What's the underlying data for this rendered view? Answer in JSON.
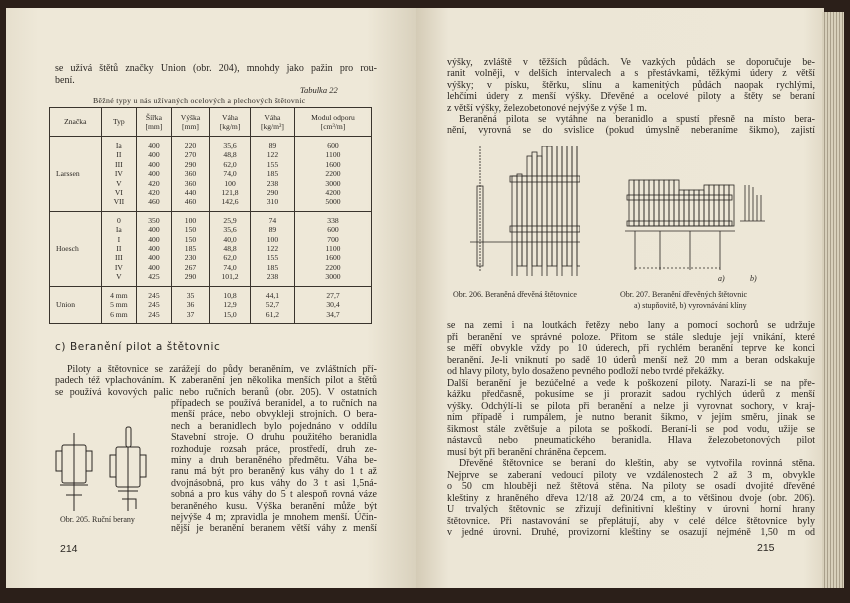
{
  "left_page": {
    "intro_lines": [
      "se užívá štětů značky Union (obr. 204), mnohdy jako pažin pro rou-",
      "bení."
    ],
    "table_label": "Tabulka 22",
    "table_caption": "Běžné typy u nás užívaných ocelových a plechových štětovnic",
    "table": {
      "headers": [
        "Značka",
        "Typ",
        "Šířka\n[mm]",
        "Výška\n[mm]",
        "Váha\n[kg/m]",
        "Váha\n[kg/m²]",
        "Modul odporu\n[cm³/m]"
      ],
      "groups": [
        {
          "brand": "Larssen",
          "rows": [
            [
              "Ia",
              "400",
              "220",
              "35,6",
              "89",
              "600"
            ],
            [
              "II",
              "400",
              "270",
              "48,8",
              "122",
              "1100"
            ],
            [
              "III",
              "400",
              "290",
              "62,0",
              "155",
              "1600"
            ],
            [
              "IV",
              "400",
              "360",
              "74,0",
              "185",
              "2200"
            ],
            [
              "V",
              "420",
              "360",
              "100",
              "238",
              "3000"
            ],
            [
              "VI",
              "420",
              "440",
              "121,8",
              "290",
              "4200"
            ],
            [
              "VII",
              "460",
              "460",
              "142,6",
              "310",
              "5000"
            ]
          ]
        },
        {
          "brand": "Hoesch",
          "rows": [
            [
              "0",
              "350",
              "100",
              "25,9",
              "74",
              "338"
            ],
            [
              "Ia",
              "400",
              "150",
              "35,6",
              "89",
              "600"
            ],
            [
              "I",
              "400",
              "150",
              "40,0",
              "100",
              "700"
            ],
            [
              "II",
              "400",
              "185",
              "48,8",
              "122",
              "1100"
            ],
            [
              "III",
              "400",
              "230",
              "62,0",
              "155",
              "1600"
            ],
            [
              "IV",
              "400",
              "267",
              "74,0",
              "185",
              "2200"
            ],
            [
              "V",
              "425",
              "290",
              "101,2",
              "238",
              "3000"
            ]
          ]
        },
        {
          "brand": "Union",
          "rows": [
            [
              "4 mm",
              "245",
              "35",
              "10,8",
              "44,1",
              "27,7"
            ],
            [
              "5 mm",
              "245",
              "36",
              "12,9",
              "52,7",
              "30,4"
            ],
            [
              "6 mm",
              "245",
              "37",
              "15,0",
              "61,2",
              "34,7"
            ]
          ]
        }
      ]
    },
    "section_heading": "c) Beranění pilot a štětovnic",
    "body_full_lines": [
      "Piloty a štětovnice se zarážejí do půdy beraněním, ve zvláštních pří-",
      "padech též vplachováním. K zaberanění jen několika menších pilot a štětů",
      "se používá kovových palic nebo ručních beranů (obr. 205). V ostatních"
    ],
    "body_narrow_lines": [
      "případech se používá beranidel, a to ručních na",
      "menší práce, nebo obvykleji strojních. O bera-",
      "nech a beranidlech bylo pojednáno v oddílu",
      "Stavební stroje. O druhu použitého beranidla",
      "rozhoduje rozsah práce, prostředí, druh ze-",
      "miny a druh beraněného předmětu. Váha be-",
      "ranu má být pro beraněný kus váhy do 1 t až",
      "dvojnásobná, pro kus váhy do 3 t asi 1,5ná-",
      "sobná a pro kus váhy do 5 t alespoň rovná váze",
      "beraněného kusu. Výška beranění může být",
      "nejvýše 4 m; zpravidla je mnohem menší. Účin-",
      "nější je beranění beranem větší váhy z menší"
    ],
    "figure_caption": "Obr. 205. Ruční berany",
    "page_number": "214"
  },
  "right_page": {
    "top_lines": [
      "výšky, zvláště v těžších půdách. Ve vazkých půdách se doporučuje be-",
      "ranit volněji, v delších intervalech a s přestávkami, těžkými údery z větší",
      "výšky; v písku, štěrku, slínu a kamenitých půdách naopak rychlými,",
      "lehčími údery z menší výšky. Dřevěné a ocelové piloty a štěty se beraní",
      "z větší výšky, železobetonové nejvýše z výše 1 m.",
      "Beraněná pilota se vytáhne na beranidlo a spustí přesně na místo bera-",
      "nění, vyrovná se do svislice (pokud úmyslně neberaníme šikmo), zajistí"
    ],
    "figure_206_caption": "Obr. 206. Beraněná dřevěná štětovnice",
    "figure_207_caption": [
      "Obr. 207. Beranění dřevěných štětovnic",
      "a) stupňovitě, b) vyrovnávání klíny"
    ],
    "figure_207_labels": [
      "a)",
      "b)"
    ],
    "bottom_lines": [
      "se na zemi i na loutkách řetězy nebo lany a pomocí sochorů se udržuje",
      "při beranění ve správné poloze. Přitom se stále sleduje její vnikání, které",
      "se měří obvykle vždy po 10 úderech, při rychlém beranění teprve ke konci",
      "beranění. Je-li vniknutí po sadě 10 úderů menší než 20 mm a beran odskakuje",
      "od hlavy piloty, bylo dosaženo pevného podloží nebo tvrdé překážky.",
      "Další beranění je bezúčelné a vede k poškození piloty. Narazí-li se na pře-",
      "kážku předčasně, pokusíme se ji prorazit sadou rychlých úderů z menší",
      "výšky. Odchýlí-li se pilota při beranění a nelze ji vyrovnat sochory, v kraj-",
      "ním případě i rumpálem, je nutno beranit šikmo, v jejím směru, jinak se",
      "šikmost stále zvětšuje a pilota se poškodí. Beraní-li se pod vodu, užije se",
      "nástavců nebo pneumatického beranidla. Hlava železobetonových pilot",
      "musí být při beranění chráněna čepcem.",
      "Dřevěné štětovnice se beraní do kleštin, aby se vytvořila rovinná stěna.",
      "Nejprve se zaberaní vedoucí piloty ve vzdálenostech 2 až 3 m, obvykle",
      "o 50 cm hlouběji než štětová stěna. Na piloty se osadí dvojité dřevěné",
      "kleštiny z hraněného dřeva 12/18 až 20/24 cm, a to většinou dvoje (obr. 206).",
      "U trvalých štětovnic se zřizují definitivní kleštiny v úrovni horní hrany",
      "štětovnice. Při nastavování se přeplátují, aby v celé délce štětovnice byly",
      "v jedné úrovni. Druhé, provizorní kleštiny se osazují nejméně 1,50 m od"
    ],
    "page_number": "215"
  },
  "colors": {
    "paper": "#eee8d8",
    "ink": "#2a2622",
    "background": "#2b1f19"
  }
}
